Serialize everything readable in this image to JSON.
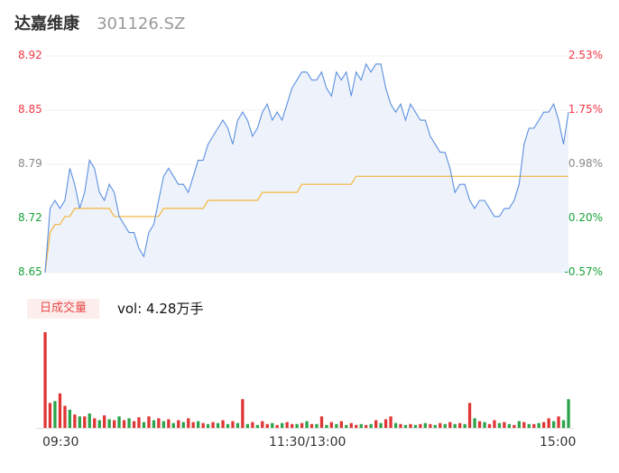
{
  "header": {
    "name": "达嘉维康",
    "code": "301126.SZ"
  },
  "colors": {
    "up": "#f23645",
    "down": "#1aa33b",
    "neutral": "#888888",
    "price_line": "#5b8fe0",
    "avg_line": "#f2b53b",
    "fill": "#eef3fb",
    "vol_up": "#e03535",
    "vol_down": "#2aa34a"
  },
  "price_axis": {
    "labels": [
      "8.92",
      "8.85",
      "8.79",
      "8.72",
      "8.65"
    ]
  },
  "pct_axis": {
    "labels": [
      "2.53%",
      "1.75%",
      "0.98%",
      "0.20%",
      "-0.57%"
    ]
  },
  "volume": {
    "badge": "日成交量",
    "text": "vol: 4.28万手"
  },
  "time_axis": {
    "labels": [
      "09:30",
      "11:30/13:00",
      "15:00"
    ]
  },
  "chart_data": {
    "type": "line",
    "title": "",
    "ylim": [
      8.65,
      8.92
    ],
    "pct_range": [
      "-0.57%",
      "2.53%"
    ],
    "x_ticks": [
      "09:30",
      "11:30/13:00",
      "15:00"
    ],
    "price": [
      8.65,
      8.73,
      8.74,
      8.73,
      8.74,
      8.78,
      8.76,
      8.73,
      8.75,
      8.79,
      8.78,
      8.75,
      8.74,
      8.76,
      8.75,
      8.72,
      8.71,
      8.7,
      8.7,
      8.68,
      8.67,
      8.7,
      8.71,
      8.74,
      8.77,
      8.78,
      8.77,
      8.76,
      8.76,
      8.75,
      8.77,
      8.79,
      8.79,
      8.81,
      8.82,
      8.83,
      8.84,
      8.83,
      8.81,
      8.84,
      8.85,
      8.84,
      8.82,
      8.83,
      8.85,
      8.86,
      8.84,
      8.85,
      8.84,
      8.86,
      8.88,
      8.89,
      8.9,
      8.9,
      8.89,
      8.89,
      8.9,
      8.88,
      8.87,
      8.9,
      8.89,
      8.9,
      8.87,
      8.9,
      8.89,
      8.91,
      8.9,
      8.91,
      8.91,
      8.88,
      8.86,
      8.85,
      8.86,
      8.84,
      8.86,
      8.85,
      8.84,
      8.84,
      8.82,
      8.81,
      8.8,
      8.8,
      8.78,
      8.75,
      8.76,
      8.76,
      8.74,
      8.73,
      8.74,
      8.74,
      8.73,
      8.72,
      8.72,
      8.73,
      8.73,
      8.74,
      8.76,
      8.81,
      8.83,
      8.83,
      8.84,
      8.85,
      8.85,
      8.86,
      8.84,
      8.81,
      8.85
    ],
    "avg_price": [
      8.65,
      8.7,
      8.71,
      8.71,
      8.72,
      8.72,
      8.73,
      8.73,
      8.73,
      8.73,
      8.73,
      8.73,
      8.73,
      8.73,
      8.72,
      8.72,
      8.72,
      8.72,
      8.72,
      8.72,
      8.72,
      8.72,
      8.72,
      8.72,
      8.73,
      8.73,
      8.73,
      8.73,
      8.73,
      8.73,
      8.73,
      8.73,
      8.73,
      8.74,
      8.74,
      8.74,
      8.74,
      8.74,
      8.74,
      8.74,
      8.74,
      8.74,
      8.74,
      8.74,
      8.75,
      8.75,
      8.75,
      8.75,
      8.75,
      8.75,
      8.75,
      8.75,
      8.76,
      8.76,
      8.76,
      8.76,
      8.76,
      8.76,
      8.76,
      8.76,
      8.76,
      8.76,
      8.76,
      8.77,
      8.77,
      8.77,
      8.77,
      8.77,
      8.77,
      8.77,
      8.77,
      8.77,
      8.77,
      8.77,
      8.77,
      8.77,
      8.77,
      8.77,
      8.77,
      8.77,
      8.77,
      8.77,
      8.77,
      8.77,
      8.77,
      8.77,
      8.77,
      8.77,
      8.77,
      8.77,
      8.77,
      8.77,
      8.77,
      8.77,
      8.77,
      8.77,
      8.77,
      8.77,
      8.77,
      8.77,
      8.77,
      8.77,
      8.77,
      8.77,
      8.77,
      8.77,
      8.77
    ],
    "volume": [
      100,
      26,
      28,
      36,
      23,
      19,
      14,
      12,
      12,
      15,
      10,
      8,
      13,
      9,
      8,
      12,
      8,
      10,
      7,
      11,
      6,
      12,
      8,
      10,
      7,
      9,
      5,
      8,
      6,
      10,
      6,
      7,
      5,
      4,
      6,
      5,
      8,
      4,
      7,
      5,
      30,
      4,
      6,
      3,
      7,
      4,
      5,
      3,
      5,
      6,
      4,
      4,
      5,
      7,
      4,
      4,
      12,
      3,
      6,
      4,
      7,
      3,
      5,
      3,
      4,
      3,
      4,
      8,
      5,
      9,
      12,
      5,
      4,
      3,
      4,
      3,
      4,
      5,
      4,
      3,
      5,
      4,
      6,
      4,
      5,
      4,
      26,
      10,
      7,
      6,
      4,
      8,
      5,
      6,
      4,
      3,
      7,
      6,
      4,
      4,
      5,
      6,
      10,
      7,
      12,
      8,
      30
    ],
    "volume_up": [
      1,
      1,
      0,
      1,
      1,
      0,
      1,
      0,
      1,
      0,
      1,
      0,
      1,
      0,
      1,
      0,
      1,
      0,
      1,
      1,
      0,
      1,
      0,
      1,
      0,
      1,
      0,
      1,
      0,
      1,
      1,
      0,
      1,
      0,
      1,
      0,
      1,
      0,
      1,
      0,
      1,
      0,
      1,
      0,
      1,
      1,
      0,
      1,
      0,
      1,
      1,
      0,
      1,
      0,
      1,
      0,
      1,
      0,
      1,
      0,
      1,
      0,
      1,
      1,
      0,
      1,
      0,
      1,
      0,
      1,
      1,
      0,
      1,
      0,
      1,
      0,
      1,
      0,
      1,
      0,
      1,
      0,
      1,
      0,
      1,
      0,
      1,
      0,
      1,
      0,
      1,
      1,
      0,
      1,
      0,
      1,
      0,
      1,
      0,
      1,
      0,
      1,
      1,
      0,
      1,
      0,
      0
    ]
  }
}
